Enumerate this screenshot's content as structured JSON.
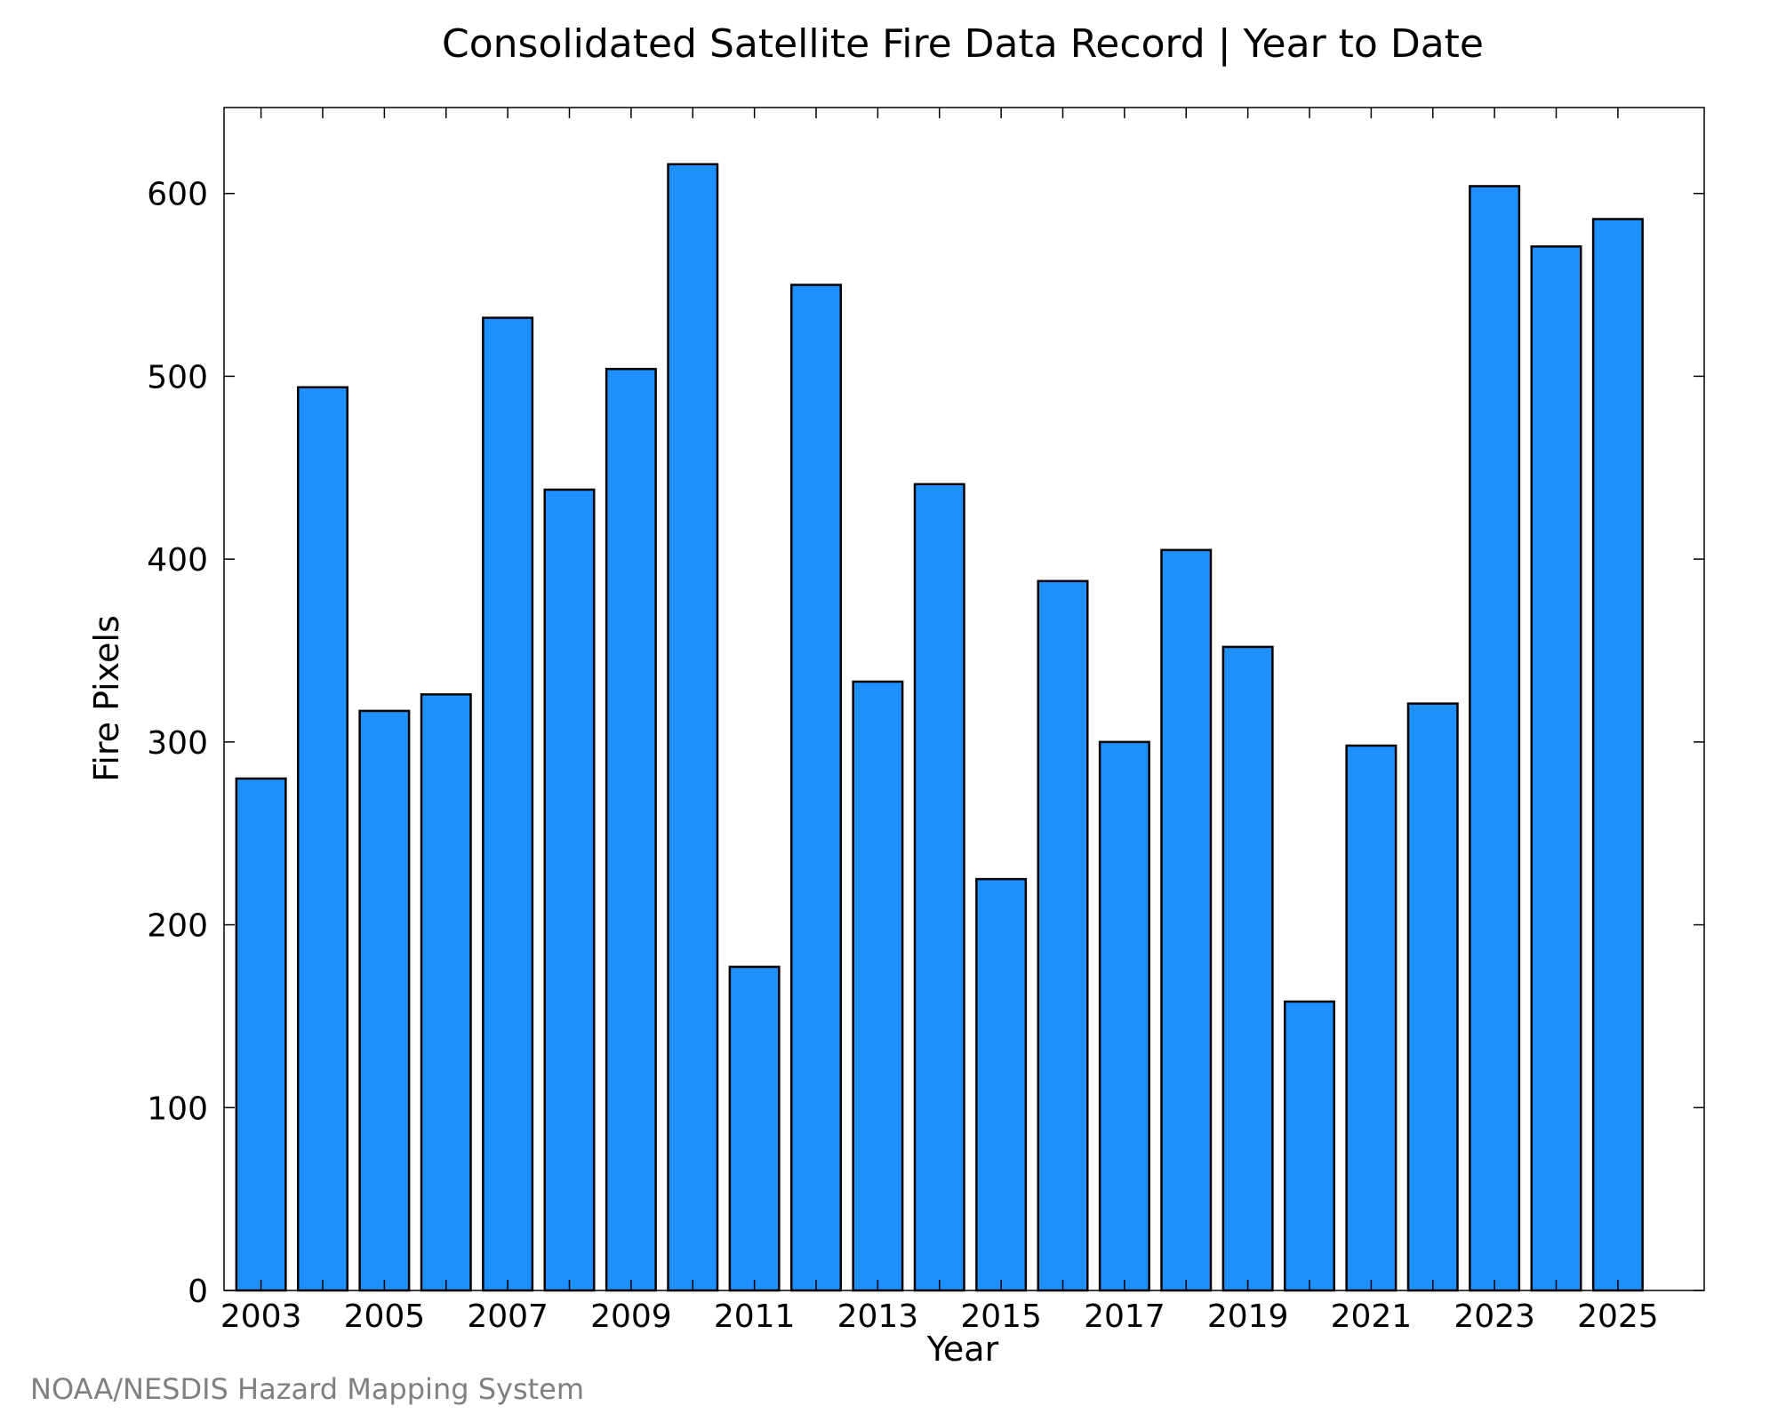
{
  "chart_data": {
    "type": "bar",
    "title": "Consolidated Satellite Fire Data Record | Year to Date",
    "xlabel": "Year",
    "ylabel": "Fire Pixels",
    "credit": "NOAA/NESDIS Hazard Mapping System",
    "categories": [
      2003,
      2004,
      2005,
      2006,
      2007,
      2008,
      2009,
      2010,
      2011,
      2012,
      2013,
      2014,
      2015,
      2016,
      2017,
      2018,
      2019,
      2020,
      2021,
      2022,
      2023,
      2024,
      2025
    ],
    "values": [
      280,
      494,
      317,
      326,
      532,
      438,
      504,
      616,
      177,
      550,
      333,
      441,
      225,
      388,
      300,
      405,
      352,
      158,
      298,
      321,
      604,
      571,
      586
    ],
    "xtick_labels": [
      "2003",
      "2005",
      "2007",
      "2009",
      "2011",
      "2013",
      "2015",
      "2017",
      "2019",
      "2021",
      "2023",
      "2025"
    ],
    "ytick_labels": [
      "0",
      "100",
      "200",
      "300",
      "400",
      "500",
      "600"
    ],
    "xlim": [
      2002.4,
      2026.4
    ],
    "ylim": [
      0,
      647
    ],
    "bar_color": "#1E90FF",
    "edge_color": "#000000",
    "grid": false,
    "legend": false
  }
}
